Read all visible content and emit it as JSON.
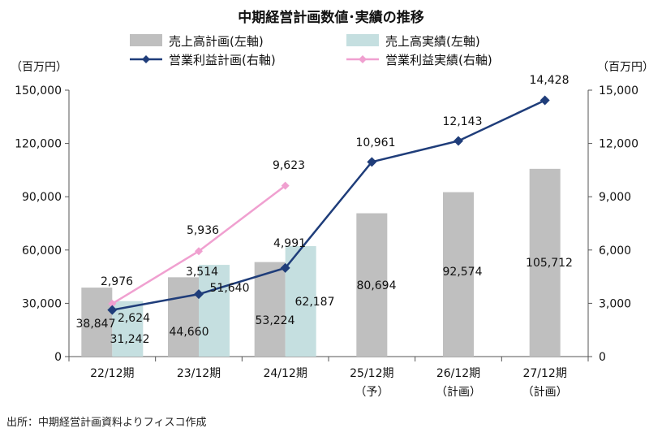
{
  "chart_data": {
    "type": "bar",
    "title": "中期経営計画数値･実績の推移",
    "left_axis_unit": "（百万円）",
    "right_axis_unit": "（百万円）",
    "categories": [
      [
        "22/12期"
      ],
      [
        "23/12期"
      ],
      [
        "24/12期"
      ],
      [
        "25/12期",
        "（予）"
      ],
      [
        "26/12期",
        "（計画）"
      ],
      [
        "27/12期",
        "（計画）"
      ]
    ],
    "left_axis": {
      "ylim": [
        0,
        150000
      ],
      "ticks": [
        "0",
        "30,000",
        "60,000",
        "90,000",
        "120,000",
        "150,000"
      ]
    },
    "right_axis": {
      "ylim": [
        0,
        15000
      ],
      "ticks": [
        "0",
        "3,000",
        "6,000",
        "9,000",
        "12,000",
        "15,000"
      ]
    },
    "grid": false,
    "legend_position": "top",
    "series": [
      {
        "name": "売上高計画(左軸)",
        "kind": "bar",
        "axis": "left",
        "color": "#bfbfbf",
        "values": [
          38847,
          44660,
          53224,
          80694,
          92574,
          105712
        ],
        "labels": [
          "38,847",
          "44,660",
          "53,224",
          "80,694",
          "92,574",
          "105,712"
        ]
      },
      {
        "name": "売上高実績(左軸)",
        "kind": "bar",
        "axis": "left",
        "color": "#c5dfe0",
        "values": [
          31242,
          51640,
          62187,
          null,
          null,
          null
        ],
        "labels": [
          "31,242",
          "51,640",
          "62,187",
          null,
          null,
          null
        ]
      },
      {
        "name": "営業利益計画(右軸)",
        "kind": "line",
        "axis": "right",
        "color": "#1f3d7a",
        "values": [
          2624,
          3514,
          4991,
          10961,
          12143,
          14428
        ],
        "labels": [
          "2,624",
          "3,514",
          "4,991",
          "10,961",
          "12,143",
          "14,428"
        ]
      },
      {
        "name": "営業利益実績(右軸)",
        "kind": "line",
        "axis": "right",
        "color": "#f0a0d0",
        "values": [
          2976,
          5936,
          9623,
          null,
          null,
          null
        ],
        "labels": [
          "2,976",
          "5,936",
          "9,623",
          null,
          null,
          null
        ]
      }
    ]
  },
  "source_note": "出所：中期経営計画資料よりフィスコ作成"
}
